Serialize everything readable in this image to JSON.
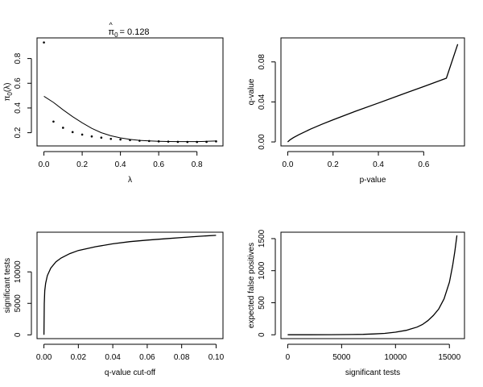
{
  "chart_data": [
    {
      "id": "pi0",
      "type": "scatter+line",
      "title": "π̂0 = 0.128",
      "title_parts": {
        "symbol": "π",
        "hat": "^",
        "sub": "0",
        "rest": "= 0.128"
      },
      "xlabel": "λ",
      "ylabel": "π0(λ)",
      "ylabel_parts": {
        "main": "π",
        "sub": "0",
        "rest": "(λ)"
      },
      "xlim": [
        -0.036,
        0.936
      ],
      "ylim": [
        0.093,
        0.967
      ],
      "xticks": [
        0.0,
        0.2,
        0.4,
        0.6,
        0.8
      ],
      "xtick_labels": [
        "0.0",
        "0.2",
        "0.4",
        "0.6",
        "0.8"
      ],
      "yticks": [
        0.2,
        0.4,
        0.6,
        0.8
      ],
      "ytick_labels": [
        "0.2",
        "0.4",
        "0.6",
        "0.8"
      ],
      "points": {
        "x": [
          0.0,
          0.05,
          0.1,
          0.15,
          0.2,
          0.25,
          0.3,
          0.35,
          0.4,
          0.45,
          0.5,
          0.55,
          0.6,
          0.65,
          0.7,
          0.75,
          0.8,
          0.85,
          0.9
        ],
        "y": [
          0.93,
          0.29,
          0.24,
          0.205,
          0.185,
          0.17,
          0.16,
          0.15,
          0.145,
          0.14,
          0.135,
          0.133,
          0.13,
          0.128,
          0.126,
          0.125,
          0.125,
          0.126,
          0.13
        ]
      },
      "smoother": {
        "x": [
          0.0,
          0.05,
          0.1,
          0.15,
          0.2,
          0.25,
          0.3,
          0.35,
          0.4,
          0.45,
          0.5,
          0.55,
          0.6,
          0.65,
          0.7,
          0.75,
          0.8,
          0.85,
          0.9
        ],
        "y": [
          0.495,
          0.445,
          0.385,
          0.33,
          0.28,
          0.235,
          0.2,
          0.175,
          0.158,
          0.146,
          0.138,
          0.134,
          0.131,
          0.129,
          0.128,
          0.128,
          0.128,
          0.13,
          0.133
        ]
      }
    },
    {
      "id": "qvalue",
      "type": "line",
      "title": "",
      "xlabel": "p-value",
      "ylabel": "q-value",
      "xlim": [
        -0.03,
        0.78
      ],
      "ylim": [
        -0.004,
        0.104
      ],
      "xticks": [
        0.0,
        0.2,
        0.4,
        0.6
      ],
      "xtick_labels": [
        "0.0",
        "0.2",
        "0.4",
        "0.6"
      ],
      "yticks": [
        0.0,
        0.04,
        0.08
      ],
      "ytick_labels": [
        "0.00",
        "0.04",
        "0.08"
      ],
      "series": [
        {
          "name": "q-value",
          "x": [
            0.0,
            0.01,
            0.025,
            0.05,
            0.1,
            0.15,
            0.2,
            0.3,
            0.4,
            0.5,
            0.6,
            0.7,
            0.75
          ],
          "y": [
            0.0,
            0.0021,
            0.0043,
            0.0074,
            0.0128,
            0.0176,
            0.0221,
            0.0307,
            0.0389,
            0.0472,
            0.0553,
            0.0637,
            0.0977
          ]
        }
      ]
    },
    {
      "id": "sigtests",
      "type": "line",
      "title": "",
      "xlabel": "q-value cut-off",
      "ylabel": "significant tests",
      "xlim": [
        -0.004,
        0.104
      ],
      "ylim": [
        -600,
        16300
      ],
      "xticks": [
        0.0,
        0.02,
        0.04,
        0.06,
        0.08,
        0.1
      ],
      "xtick_labels": [
        "0.00",
        "0.02",
        "0.04",
        "0.06",
        "0.08",
        "0.10"
      ],
      "yticks": [
        0,
        5000,
        10000
      ],
      "ytick_labels": [
        "0",
        "5000",
        "10000"
      ],
      "series": [
        {
          "name": "significant tests",
          "x": [
            0.0,
            0.0002,
            0.0005,
            0.001,
            0.002,
            0.004,
            0.007,
            0.01,
            0.015,
            0.02,
            0.03,
            0.04,
            0.05,
            0.06,
            0.07,
            0.08,
            0.09,
            0.1
          ],
          "y": [
            0,
            5000,
            7000,
            8200,
            9400,
            10600,
            11600,
            12200,
            12900,
            13400,
            14000,
            14450,
            14800,
            15050,
            15250,
            15450,
            15650,
            15800
          ]
        }
      ]
    },
    {
      "id": "falsepos",
      "type": "line",
      "title": "",
      "xlabel": "significant tests",
      "ylabel": "expected false positives",
      "xlim": [
        -630,
        16400
      ],
      "ylim": [
        -60,
        1600
      ],
      "xticks": [
        0,
        5000,
        10000,
        15000
      ],
      "xtick_labels": [
        "0",
        "5000",
        "10000",
        "15000"
      ],
      "yticks": [
        0,
        500,
        1000,
        1500
      ],
      "ytick_labels": [
        "0",
        "500",
        "1000",
        "1500"
      ],
      "series": [
        {
          "name": "expected false positives",
          "x": [
            0,
            2000,
            4000,
            6000,
            7000,
            8000,
            9000,
            10000,
            11000,
            12000,
            12500,
            13000,
            13500,
            14000,
            14500,
            15000,
            15300,
            15500,
            15700
          ],
          "y": [
            0,
            0,
            1,
            4,
            7,
            13,
            22,
            40,
            70,
            120,
            160,
            220,
            300,
            400,
            560,
            820,
            1080,
            1300,
            1550
          ]
        }
      ]
    }
  ]
}
